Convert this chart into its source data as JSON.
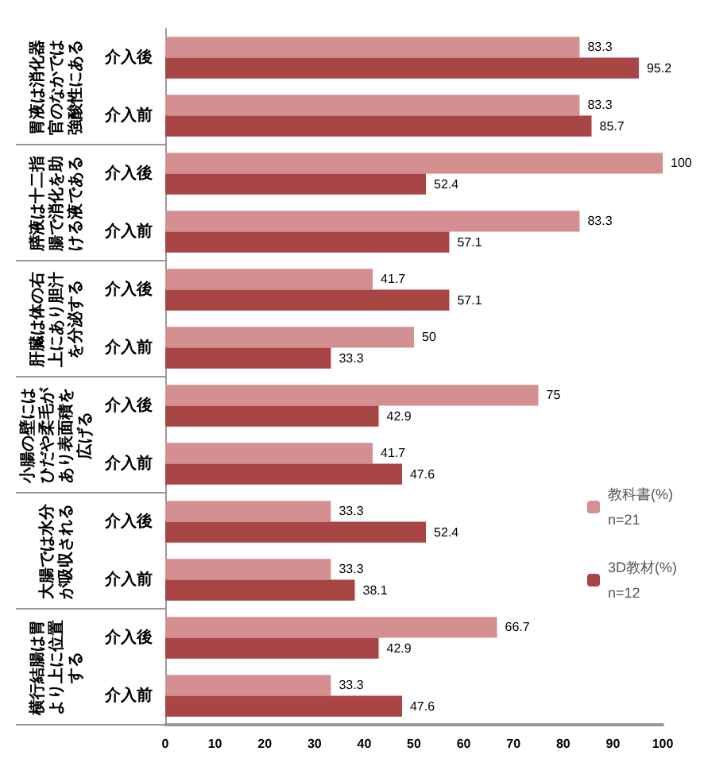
{
  "chart_data": {
    "type": "bar",
    "orientation": "horizontal",
    "categories": [
      "介入後",
      "介入前",
      "介入後",
      "介入前",
      "介入後",
      "介入前",
      "介入後",
      "介入前",
      "介入後",
      "介入前",
      "介入後",
      "介入前"
    ],
    "series": [
      {
        "name": "教科書(%)\nn=21",
        "color": "#d49090",
        "values": [
          83.3,
          83.3,
          100,
          83.3,
          41.7,
          50,
          75,
          41.7,
          33.3,
          33.3,
          66.7,
          33.3
        ]
      },
      {
        "name": "3D教材(%)\nn=12",
        "color": "#a84545",
        "values": [
          95.2,
          85.7,
          52.4,
          57.1,
          57.1,
          33.3,
          42.9,
          47.6,
          52.4,
          38.1,
          42.9,
          47.6
        ]
      }
    ],
    "annotations": [
      "胃液は消化器官のなかでは強酸性にある",
      "膵液は十二指腸で消化を助ける液である",
      "肝臓は体の右上にあり胆汁を分泌する",
      "小腸の壁にはひだや柔毛があり表面積を広げる",
      "大腸では水分が吸収される",
      "横行結腸は胃より上に位置する"
    ],
    "xlim": [
      0,
      100
    ],
    "xticks": [
      0,
      10,
      20,
      30,
      40,
      50,
      60,
      70,
      80,
      90,
      100
    ],
    "data_labels": true,
    "grid": false,
    "legend": "right"
  }
}
